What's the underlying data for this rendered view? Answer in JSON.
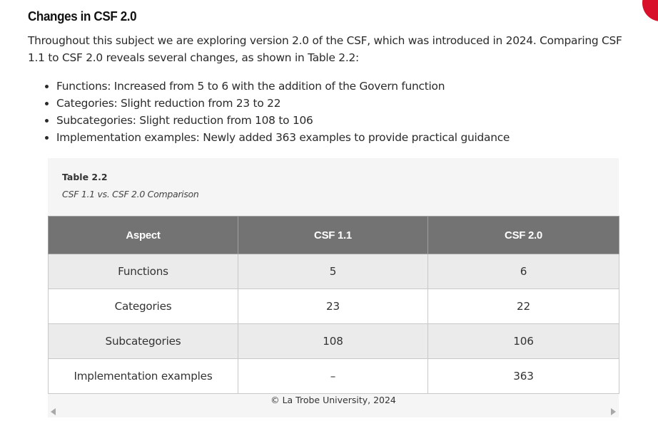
{
  "heading": "Changes in CSF 2.0",
  "intro": "Throughout this subject we are exploring version 2.0 of the CSF, which was introduced in 2024. Comparing CSF 1.1 to CSF 2.0 reveals several changes, as shown in Table 2.2:",
  "bullets": [
    "Functions: Increased from 5 to 6 with the addition of the Govern function",
    "Categories: Slight reduction from 23 to 22",
    "Subcategories: Slight reduction from 108 to 106",
    "Implementation examples: Newly added 363 examples to provide practical guidance"
  ],
  "table": {
    "label": "Table 2.2",
    "title": "CSF 1.1 vs. CSF 2.0 Comparison",
    "headers": [
      "Aspect",
      "CSF 1.1",
      "CSF 2.0"
    ],
    "rows": [
      [
        "Functions",
        "5",
        "6"
      ],
      [
        "Categories",
        "23",
        "22"
      ],
      [
        "Subcategories",
        "108",
        "106"
      ],
      [
        "Implementation examples",
        "–",
        "363"
      ]
    ],
    "copyright": "© La Trobe University, 2024"
  },
  "colors": {
    "header_bg": "#737373",
    "row_alt_bg": "#ebebeb",
    "figure_bg": "#f5f5f5",
    "accent_red": "#d8102a"
  }
}
